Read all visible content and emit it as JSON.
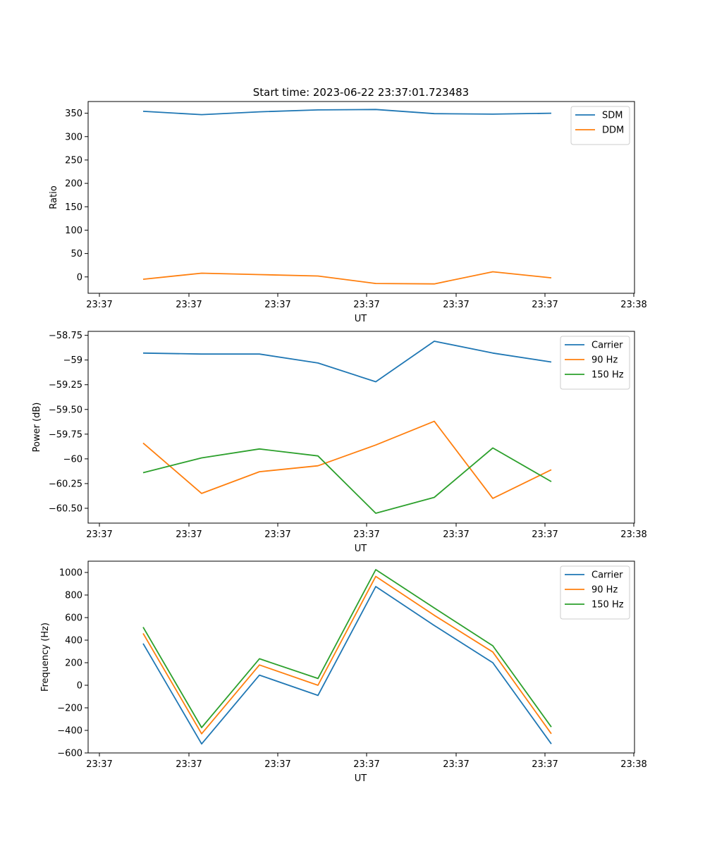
{
  "figure": {
    "title": "Start time: 2023-06-22 23:37:01.723483"
  },
  "chart_data": [
    {
      "type": "line",
      "xlabel": "UT",
      "ylabel": "Ratio",
      "x_ticks": [
        "23:37",
        "23:37",
        "23:37",
        "23:37",
        "23:37",
        "23:37",
        "23:38"
      ],
      "ylim": [
        -35,
        375
      ],
      "y_ticks": [
        0,
        50,
        100,
        150,
        200,
        250,
        300,
        350
      ],
      "legend_position": "top-right",
      "grid": false,
      "series": [
        {
          "name": "SDM",
          "color": "#1f77b4",
          "values": [
            354,
            347,
            353,
            357,
            358,
            349,
            348,
            350
          ]
        },
        {
          "name": "DDM",
          "color": "#ff7f0e",
          "values": [
            -5,
            8,
            5,
            2,
            -14,
            -15,
            11,
            -2
          ]
        }
      ]
    },
    {
      "type": "line",
      "xlabel": "UT",
      "ylabel": "Power (dB)",
      "x_ticks": [
        "23:37",
        "23:37",
        "23:37",
        "23:37",
        "23:37",
        "23:37",
        "23:38"
      ],
      "ylim": [
        -60.65,
        -58.71
      ],
      "y_ticks": [
        -60.5,
        -60.25,
        -60.0,
        -59.75,
        -59.5,
        -59.25,
        -59.0,
        -58.75
      ],
      "legend_position": "top-right",
      "grid": false,
      "series": [
        {
          "name": "Carrier",
          "color": "#1f77b4",
          "values": [
            -58.93,
            -58.94,
            -58.94,
            -59.03,
            -59.22,
            -58.81,
            -58.93,
            -59.02
          ]
        },
        {
          "name": "90 Hz",
          "color": "#ff7f0e",
          "values": [
            -59.84,
            -60.35,
            -60.13,
            -60.07,
            -59.86,
            -59.62,
            -60.4,
            -60.11
          ]
        },
        {
          "name": "150 Hz",
          "color": "#2ca02c",
          "values": [
            -60.14,
            -59.99,
            -59.9,
            -59.97,
            -60.55,
            -60.39,
            -59.89,
            -60.23
          ]
        }
      ]
    },
    {
      "type": "line",
      "xlabel": "UT",
      "ylabel": "Frequency (Hz)",
      "x_ticks": [
        "23:37",
        "23:37",
        "23:37",
        "23:37",
        "23:37",
        "23:37",
        "23:38"
      ],
      "ylim": [
        -600,
        1100
      ],
      "y_ticks": [
        -600,
        -400,
        -200,
        0,
        200,
        400,
        600,
        800,
        1000
      ],
      "legend_position": "top-right",
      "grid": false,
      "series": [
        {
          "name": "Carrier",
          "color": "#1f77b4",
          "values": [
            370,
            -520,
            90,
            -90,
            875,
            530,
            200,
            -520
          ]
        },
        {
          "name": "90 Hz",
          "color": "#ff7f0e",
          "values": [
            460,
            -430,
            180,
            0,
            965,
            620,
            295,
            -430
          ]
        },
        {
          "name": "150 Hz",
          "color": "#2ca02c",
          "values": [
            515,
            -375,
            235,
            60,
            1025,
            685,
            350,
            -370
          ]
        }
      ]
    }
  ]
}
